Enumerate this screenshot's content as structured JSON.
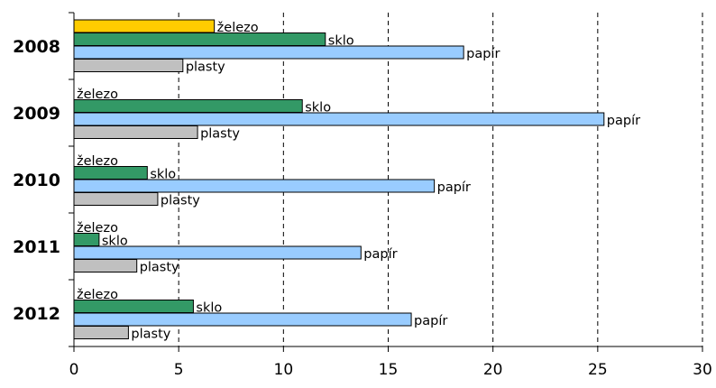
{
  "chart_data": {
    "type": "bar",
    "orientation": "horizontal",
    "categories": [
      "2008",
      "2009",
      "2010",
      "2011",
      "2012"
    ],
    "series": [
      {
        "name": "železo",
        "color": "#FFCC00",
        "values": [
          6.7,
          0,
          0,
          0,
          0
        ]
      },
      {
        "name": "sklo",
        "color": "#339966",
        "values": [
          12.0,
          10.9,
          3.5,
          1.2,
          5.7
        ]
      },
      {
        "name": "papír",
        "color": "#99CCFF",
        "values": [
          18.6,
          25.3,
          17.2,
          13.7,
          16.1
        ]
      },
      {
        "name": "plasty",
        "color": "#C0C0C0",
        "values": [
          5.2,
          5.9,
          4.0,
          3.0,
          2.6
        ]
      }
    ],
    "xlim": [
      0,
      30
    ],
    "xticks": [
      "0",
      "5",
      "10",
      "15",
      "20",
      "25",
      "30"
    ],
    "grid": "vertical dashed",
    "legend": "none (data labels at bar ends)",
    "title": "",
    "xlabel": "",
    "ylabel": ""
  }
}
